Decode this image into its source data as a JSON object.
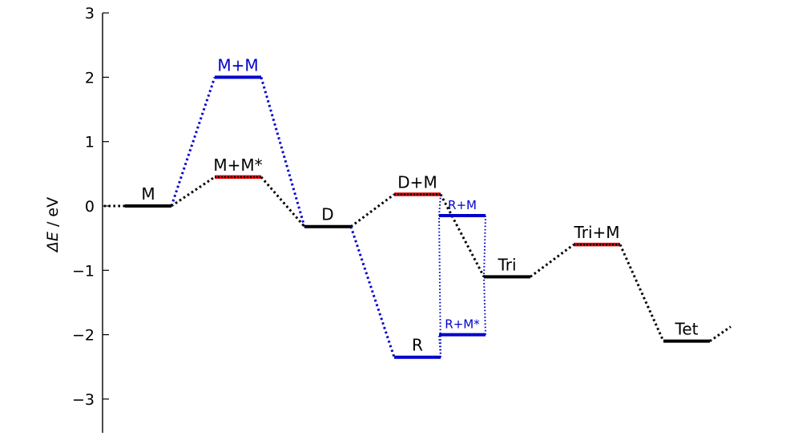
{
  "chart_data": {
    "type": "line",
    "ylabel_symbol": "ΔE",
    "ylabel_unit": " / eV",
    "ylim": [
      -3.5,
      3
    ],
    "yticks": [
      {
        "value": 3,
        "label": "3"
      },
      {
        "value": 2,
        "label": "2"
      },
      {
        "value": 1,
        "label": "1"
      },
      {
        "value": 0,
        "label": "0"
      },
      {
        "value": -1,
        "label": "−1"
      },
      {
        "value": -2,
        "label": "−2"
      },
      {
        "value": -3,
        "label": "−3"
      }
    ],
    "colors": {
      "black": "#000000",
      "blue": "#0000cc",
      "red": "#dd0000"
    },
    "levels": [
      {
        "id": "M",
        "label": "M",
        "x": 0,
        "energy": 0.0,
        "color": "black",
        "label_color": "black",
        "dashed": false
      },
      {
        "id": "MM",
        "label": "M+M",
        "x": 1,
        "energy": 2.0,
        "color": "blue",
        "label_color": "blue",
        "dashed": false
      },
      {
        "id": "MMs",
        "label": "M+M*",
        "x": 1,
        "energy": 0.45,
        "color": "red",
        "label_color": "black",
        "dashed": true
      },
      {
        "id": "D",
        "label": "D",
        "x": 2,
        "energy": -0.32,
        "color": "black",
        "label_color": "black",
        "dashed": false
      },
      {
        "id": "DM",
        "label": "D+M",
        "x": 3,
        "energy": 0.18,
        "color": "red",
        "label_color": "black",
        "dashed": true
      },
      {
        "id": "R",
        "label": "R",
        "x": 3,
        "energy": -2.35,
        "color": "blue",
        "label_color": "black",
        "dashed": false
      },
      {
        "id": "RM",
        "label": "R+M",
        "x": 3.5,
        "energy": -0.15,
        "color": "blue",
        "label_color": "blue",
        "dashed": false,
        "small": true
      },
      {
        "id": "RMs",
        "label": "R+M*",
        "x": 3.5,
        "energy": -2.0,
        "color": "blue",
        "label_color": "blue",
        "dashed": false,
        "small": true
      },
      {
        "id": "Tri",
        "label": "Tri",
        "x": 4,
        "energy": -1.1,
        "color": "black",
        "label_color": "black",
        "dashed": false
      },
      {
        "id": "TriM",
        "label": "Tri+M",
        "x": 5,
        "energy": -0.6,
        "color": "red",
        "label_color": "black",
        "dashed": true
      },
      {
        "id": "Tet",
        "label": "Tet",
        "x": 6,
        "energy": -2.1,
        "color": "black",
        "label_color": "black",
        "dashed": false
      }
    ],
    "connections": [
      {
        "from": "M",
        "to": "MM",
        "color": "blue"
      },
      {
        "from": "MM",
        "to": "D",
        "color": "blue"
      },
      {
        "from": "M",
        "to": "MMs",
        "color": "black"
      },
      {
        "from": "MMs",
        "to": "D",
        "color": "black"
      },
      {
        "from": "D",
        "to": "DM",
        "color": "black"
      },
      {
        "from": "D",
        "to": "R",
        "color": "blue"
      },
      {
        "from": "DM",
        "to": "Tri",
        "color": "black"
      },
      {
        "from": "DM",
        "to": "RM",
        "color": "blue",
        "thin": true
      },
      {
        "from": "R",
        "to": "RM",
        "color": "blue",
        "thin": true
      },
      {
        "from": "R",
        "to": "RMs",
        "color": "blue",
        "thin": true
      },
      {
        "from": "RM",
        "to": "Tri",
        "color": "blue",
        "thin": true
      },
      {
        "from": "RMs",
        "to": "Tri",
        "color": "blue",
        "thin": true
      },
      {
        "from": "Tri",
        "to": "TriM",
        "color": "black"
      },
      {
        "from": "TriM",
        "to": "Tet",
        "color": "black"
      }
    ],
    "stubs": [
      {
        "from": "M",
        "side": "left",
        "color": "black"
      },
      {
        "from": "Tet",
        "side": "right",
        "color": "black"
      }
    ]
  }
}
